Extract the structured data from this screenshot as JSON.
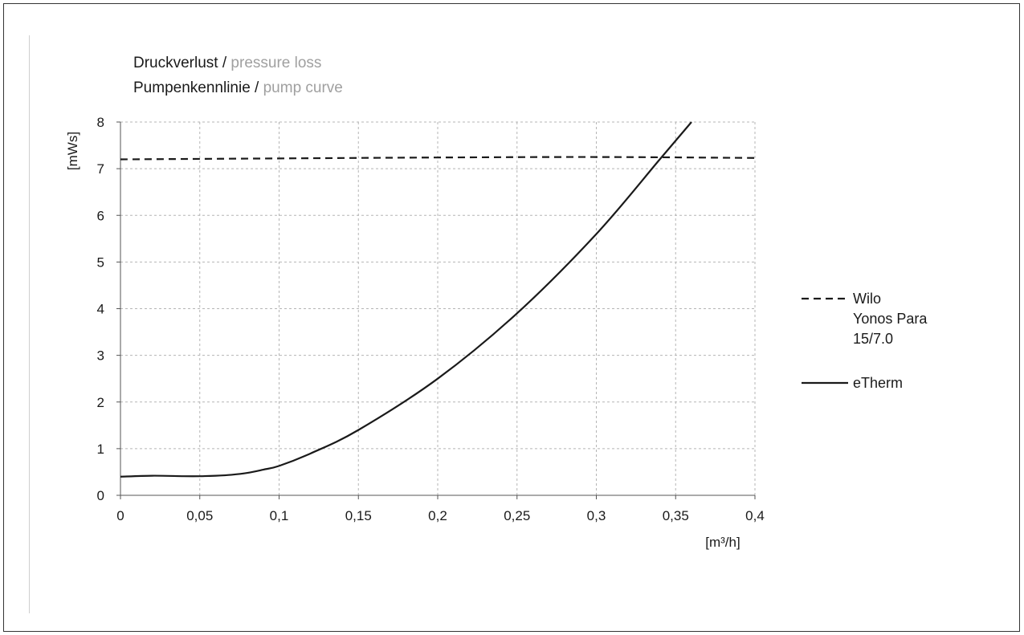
{
  "chart_data": {
    "type": "line",
    "title_lines": [
      {
        "dark": "Druckverlust  / ",
        "gray": "pressure loss"
      },
      {
        "dark": "Pumpenkennlinie / ",
        "gray": "pump curve"
      }
    ],
    "xlabel": "[m³/h]",
    "ylabel": "[mWs]",
    "xlim": [
      0,
      0.4
    ],
    "ylim": [
      0,
      8
    ],
    "x_ticks": [
      0,
      0.05,
      0.1,
      0.15,
      0.2,
      0.25,
      0.3,
      0.35,
      0.4
    ],
    "x_tick_labels": [
      "0",
      "0,05",
      "0,1",
      "0,15",
      "0,2",
      "0,25",
      "0,3",
      "0,35",
      "0,4"
    ],
    "y_ticks": [
      0,
      1,
      2,
      3,
      4,
      5,
      6,
      7,
      8
    ],
    "y_tick_labels": [
      "0",
      "1",
      "2",
      "3",
      "4",
      "5",
      "6",
      "7",
      "8"
    ],
    "grid": true,
    "legend_position": "right",
    "series": [
      {
        "name": "Wilo Yonos Para 15/7.0",
        "legend_lines": [
          "Wilo",
          "Yonos Para",
          "15/7.0"
        ],
        "style": "dashed",
        "color": "#1a1a1a",
        "x": [
          0,
          0.1,
          0.2,
          0.3,
          0.4
        ],
        "y": [
          7.2,
          7.22,
          7.24,
          7.25,
          7.23
        ]
      },
      {
        "name": "eTherm",
        "legend_lines": [
          "eTherm"
        ],
        "style": "solid",
        "color": "#1a1a1a",
        "x": [
          0,
          0.02,
          0.04,
          0.05,
          0.06,
          0.07,
          0.08,
          0.09,
          0.1,
          0.12,
          0.15,
          0.2,
          0.25,
          0.3,
          0.34,
          0.36
        ],
        "y": [
          0.4,
          0.42,
          0.41,
          0.41,
          0.42,
          0.44,
          0.48,
          0.55,
          0.63,
          0.9,
          1.4,
          2.5,
          3.9,
          5.6,
          7.2,
          8.0
        ]
      }
    ]
  }
}
